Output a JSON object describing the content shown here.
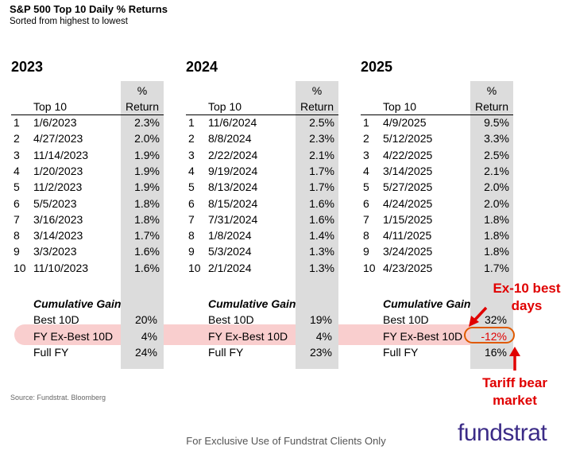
{
  "title": "S&P 500 Top 10 Daily % Returns",
  "subtitle": "Sorted from highest to lowest",
  "colors": {
    "annotation_red": "#e00000",
    "oval_orange": "#e05a00",
    "band_pink": "#f8c9c9",
    "brand_purple": "#3b2b87"
  },
  "headers": {
    "top10": "Top 10",
    "pct": "%",
    "return": "Return",
    "cum": "Cumulative Gain"
  },
  "years": [
    {
      "year": "2023",
      "rows": [
        {
          "n": "1",
          "date": "1/6/2023",
          "ret": "2.3%"
        },
        {
          "n": "2",
          "date": "4/27/2023",
          "ret": "2.0%"
        },
        {
          "n": "3",
          "date": "11/14/2023",
          "ret": "1.9%"
        },
        {
          "n": "4",
          "date": "1/20/2023",
          "ret": "1.9%"
        },
        {
          "n": "5",
          "date": "11/2/2023",
          "ret": "1.9%"
        },
        {
          "n": "6",
          "date": "5/5/2023",
          "ret": "1.8%"
        },
        {
          "n": "7",
          "date": "3/16/2023",
          "ret": "1.8%"
        },
        {
          "n": "8",
          "date": "3/14/2023",
          "ret": "1.7%"
        },
        {
          "n": "9",
          "date": "3/3/2023",
          "ret": "1.6%"
        },
        {
          "n": "10",
          "date": "11/10/2023",
          "ret": "1.6%"
        }
      ],
      "cum": [
        {
          "label": "Best 10D",
          "value": "20%"
        },
        {
          "label": "FY Ex-Best 10D",
          "value": "4%"
        },
        {
          "label": "Full FY",
          "value": "24%"
        }
      ]
    },
    {
      "year": "2024",
      "rows": [
        {
          "n": "1",
          "date": "11/6/2024",
          "ret": "2.5%"
        },
        {
          "n": "2",
          "date": "8/8/2024",
          "ret": "2.3%"
        },
        {
          "n": "3",
          "date": "2/22/2024",
          "ret": "2.1%"
        },
        {
          "n": "4",
          "date": "9/19/2024",
          "ret": "1.7%"
        },
        {
          "n": "5",
          "date": "8/13/2024",
          "ret": "1.7%"
        },
        {
          "n": "6",
          "date": "8/15/2024",
          "ret": "1.6%"
        },
        {
          "n": "7",
          "date": "7/31/2024",
          "ret": "1.6%"
        },
        {
          "n": "8",
          "date": "1/8/2024",
          "ret": "1.4%"
        },
        {
          "n": "9",
          "date": "5/3/2024",
          "ret": "1.3%"
        },
        {
          "n": "10",
          "date": "2/1/2024",
          "ret": "1.3%"
        }
      ],
      "cum": [
        {
          "label": "Best 10D",
          "value": "19%"
        },
        {
          "label": "FY Ex-Best 10D",
          "value": "4%"
        },
        {
          "label": "Full FY",
          "value": "23%"
        }
      ]
    },
    {
      "year": "2025",
      "rows": [
        {
          "n": "1",
          "date": "4/9/2025",
          "ret": "9.5%"
        },
        {
          "n": "2",
          "date": "5/12/2025",
          "ret": "3.3%"
        },
        {
          "n": "3",
          "date": "4/22/2025",
          "ret": "2.5%"
        },
        {
          "n": "4",
          "date": "3/14/2025",
          "ret": "2.1%"
        },
        {
          "n": "5",
          "date": "5/27/2025",
          "ret": "2.0%"
        },
        {
          "n": "6",
          "date": "4/24/2025",
          "ret": "2.0%"
        },
        {
          "n": "7",
          "date": "1/15/2025",
          "ret": "1.8%"
        },
        {
          "n": "8",
          "date": "4/11/2025",
          "ret": "1.8%"
        },
        {
          "n": "9",
          "date": "3/24/2025",
          "ret": "1.8%"
        },
        {
          "n": "10",
          "date": "4/23/2025",
          "ret": "1.7%"
        }
      ],
      "cum": [
        {
          "label": "Best 10D",
          "value": "32%"
        },
        {
          "label": "FY Ex-Best 10D",
          "value": "-12%"
        },
        {
          "label": "Full FY",
          "value": "16%"
        }
      ]
    }
  ],
  "annotations": {
    "ex10_line1": "Ex-10  best",
    "ex10_line2": "days",
    "tariff_line1": "Tariff bear",
    "tariff_line2": "market"
  },
  "source": "Source: Fundstrat. Bloomberg",
  "footer": "For Exclusive Use of Fundstrat Clients Only",
  "logo": "fundstrat"
}
